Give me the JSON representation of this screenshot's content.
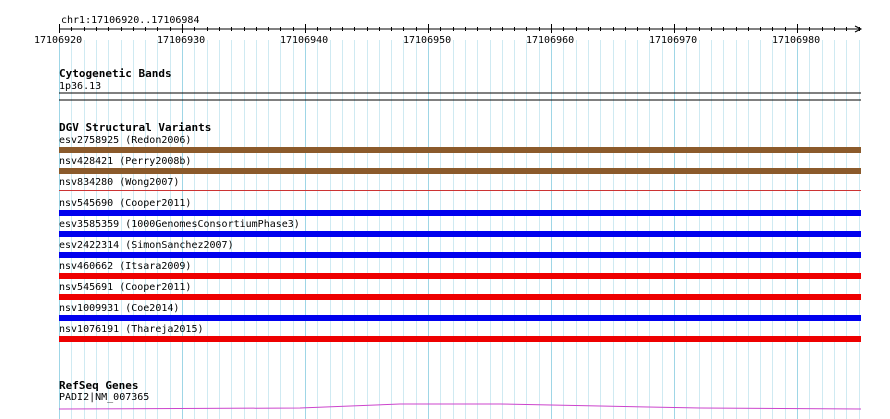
{
  "ruler": {
    "position_label": "chr1:17106920..17106984",
    "ticks": [
      "17106920",
      "17106930",
      "17106940",
      "17106950",
      "17106960",
      "17106970",
      "17106980"
    ]
  },
  "cytoband": {
    "title": "Cytogenetic Bands",
    "band": "1p36.13"
  },
  "dgv": {
    "title": "DGV Structural Variants",
    "variants": [
      {
        "label": "esv2758925 (Redon2006)",
        "color": "#8b5a2b"
      },
      {
        "label": "nsv428421 (Perry2008b)",
        "color": "#8b5a2b"
      },
      {
        "label": "nsv834280 (Wong2007)",
        "color": "#cc3333"
      },
      {
        "label": "nsv545690 (Cooper2011)",
        "color": "#0000ee"
      },
      {
        "label": "esv3585359 (1000GenomesConsortiumPhase3)",
        "color": "#0000ee"
      },
      {
        "label": "esv2422314 (SimonSanchez2007)",
        "color": "#0000ee"
      },
      {
        "label": "nsv460662 (Itsara2009)",
        "color": "#ee0000"
      },
      {
        "label": "nsv545691 (Cooper2011)",
        "color": "#ee0000"
      },
      {
        "label": "nsv1009931 (Coe2014)",
        "color": "#0000ee"
      },
      {
        "label": "nsv1076191 (Thareja2015)",
        "color": "#ee0000"
      }
    ]
  },
  "refseq": {
    "title": "RefSeq Genes",
    "gene": "PADI2|NM_007365",
    "color": "#cc44cc"
  }
}
